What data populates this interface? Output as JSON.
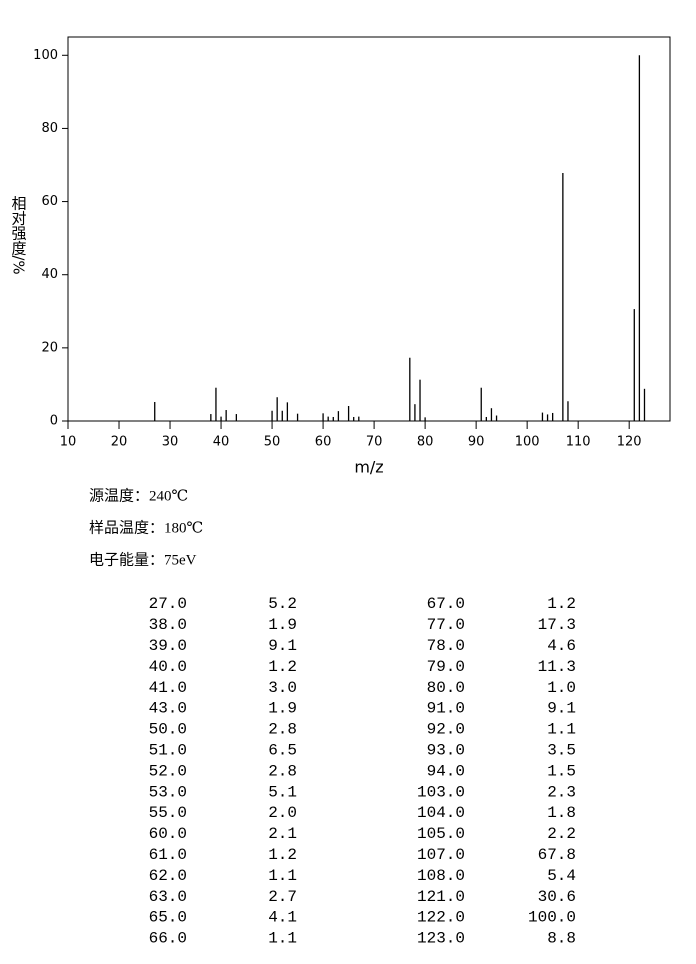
{
  "chart_data": {
    "type": "stem",
    "ylabel": "相对强度/%",
    "xlabel": "m/z",
    "x": [
      27,
      38,
      39,
      40,
      41,
      43,
      50,
      51,
      52,
      53,
      55,
      60,
      61,
      62,
      63,
      65,
      66,
      67,
      77,
      78,
      79,
      80,
      91,
      92,
      93,
      94,
      103,
      104,
      105,
      107,
      108,
      121,
      122,
      123
    ],
    "values": [
      5.2,
      1.9,
      9.1,
      1.2,
      3.0,
      1.9,
      2.8,
      6.5,
      2.8,
      5.1,
      2.0,
      2.1,
      1.2,
      1.1,
      2.7,
      4.1,
      1.1,
      1.2,
      17.3,
      4.6,
      11.3,
      1.0,
      9.1,
      1.1,
      3.5,
      1.5,
      2.3,
      1.8,
      2.2,
      67.8,
      5.4,
      30.6,
      100.0,
      8.8
    ],
    "color": "#000000",
    "xlim": [
      10,
      128
    ],
    "xticks": [
      10,
      20,
      30,
      40,
      50,
      60,
      70,
      80,
      90,
      100,
      110,
      120
    ],
    "ylim": [
      0,
      105
    ],
    "yticks": [
      0,
      20,
      40,
      60,
      80,
      100
    ]
  },
  "info": [
    "源温度：240℃",
    "样品温度：180℃",
    "电子能量：75eV"
  ],
  "table": {
    "rows": [
      [
        "27.0",
        "5.2",
        "67.0",
        "1.2"
      ],
      [
        "38.0",
        "1.9",
        "77.0",
        "17.3"
      ],
      [
        "39.0",
        "9.1",
        "78.0",
        "4.6"
      ],
      [
        "40.0",
        "1.2",
        "79.0",
        "11.3"
      ],
      [
        "41.0",
        "3.0",
        "80.0",
        "1.0"
      ],
      [
        "43.0",
        "1.9",
        "91.0",
        "9.1"
      ],
      [
        "50.0",
        "2.8",
        "92.0",
        "1.1"
      ],
      [
        "51.0",
        "6.5",
        "93.0",
        "3.5"
      ],
      [
        "52.0",
        "2.8",
        "94.0",
        "1.5"
      ],
      [
        "53.0",
        "5.1",
        "103.0",
        "2.3"
      ],
      [
        "55.0",
        "2.0",
        "104.0",
        "1.8"
      ],
      [
        "60.0",
        "2.1",
        "105.0",
        "2.2"
      ],
      [
        "61.0",
        "1.2",
        "107.0",
        "67.8"
      ],
      [
        "62.0",
        "1.1",
        "108.0",
        "5.4"
      ],
      [
        "63.0",
        "2.7",
        "121.0",
        "30.6"
      ],
      [
        "65.0",
        "4.1",
        "122.0",
        "100.0"
      ],
      [
        "66.0",
        "1.1",
        "123.0",
        "8.8"
      ]
    ]
  }
}
